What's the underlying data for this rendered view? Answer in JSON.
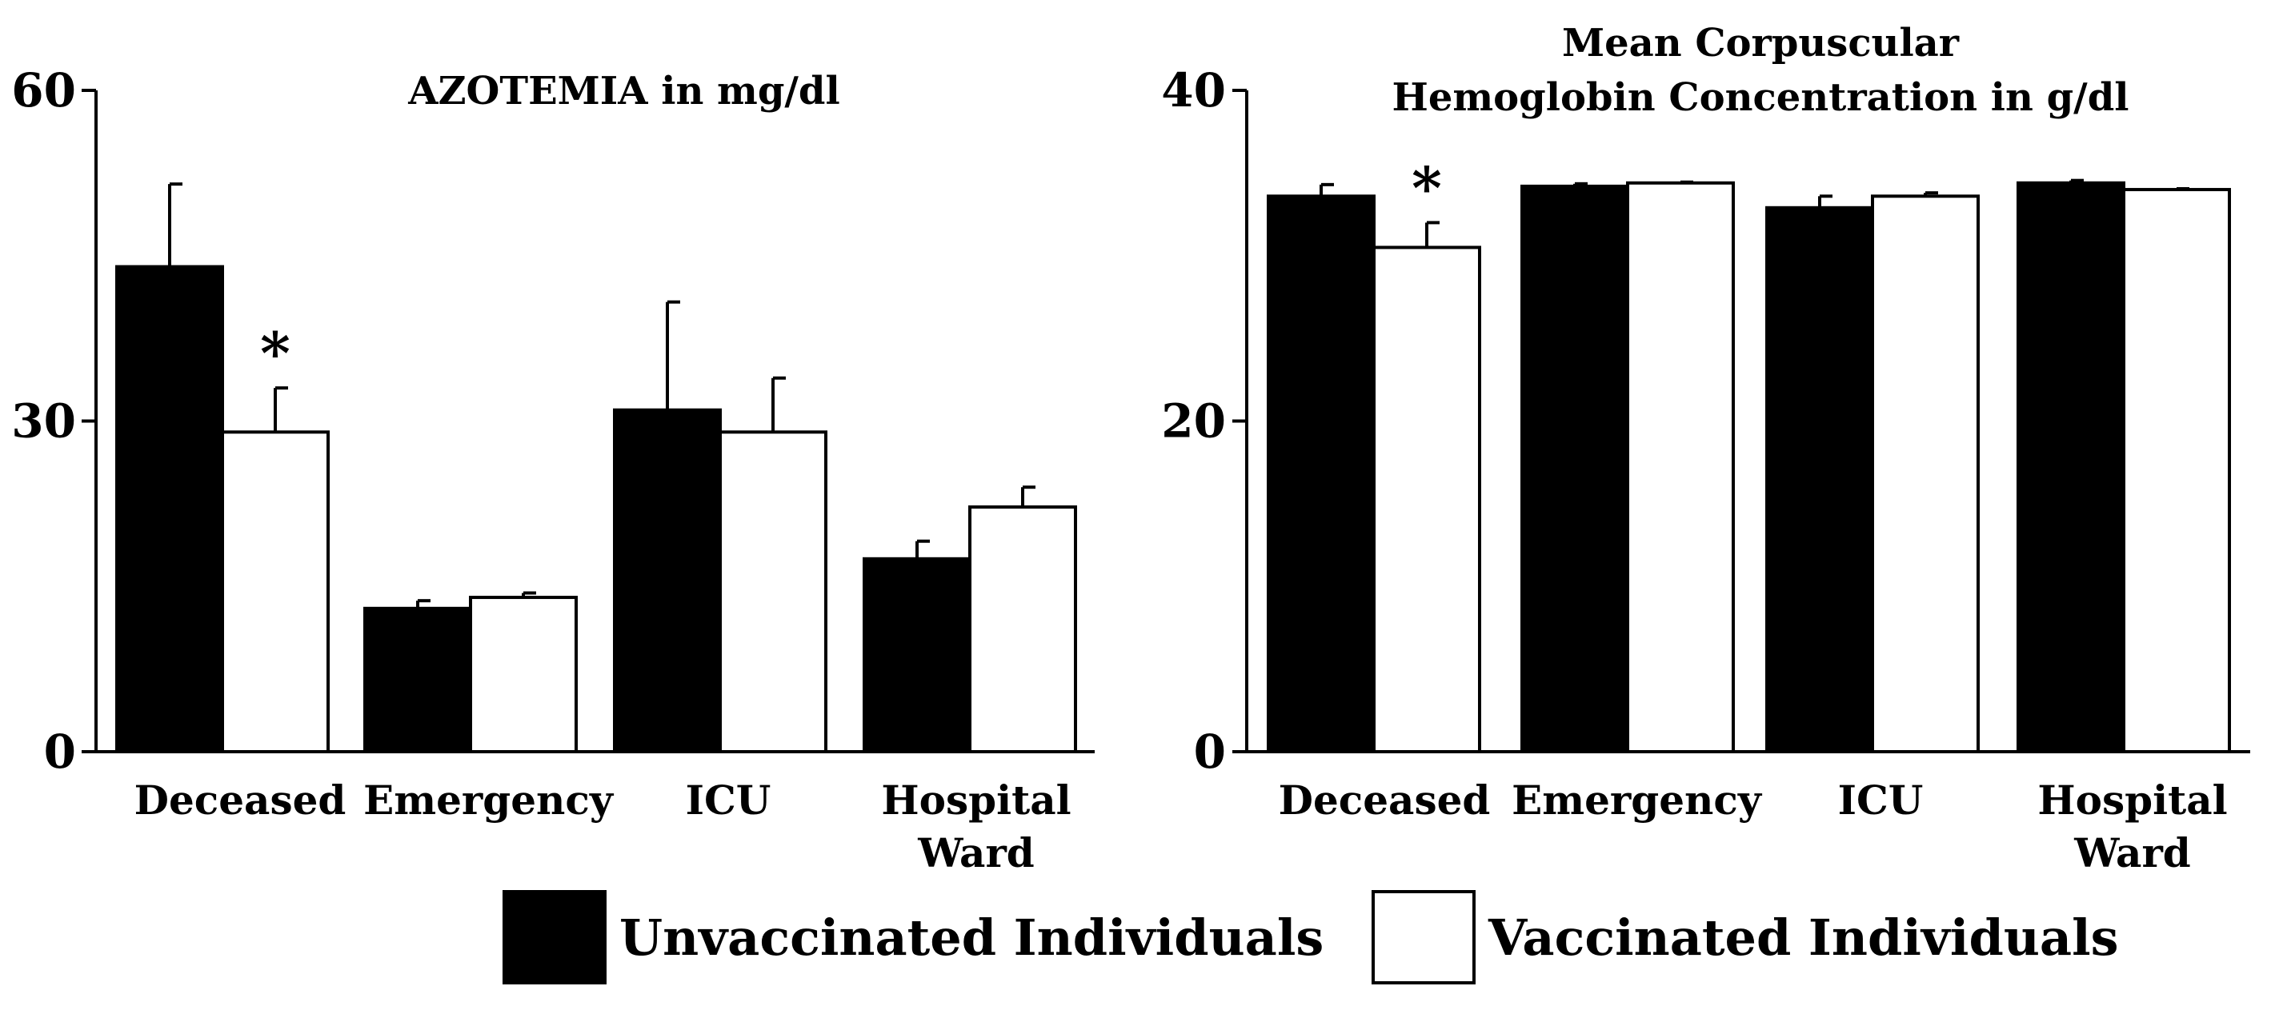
{
  "colors": {
    "unvaccinated": "#000000",
    "vaccinated": "#ffffff",
    "axis": "#000000"
  },
  "legend": {
    "unvaccinated_label": "Unvaccinated Individuals",
    "vaccinated_label": "Vaccinated Individuals"
  },
  "chart_data": [
    {
      "type": "bar",
      "title": "AZOTEMIA in mg/dl",
      "categories": [
        "Deceased",
        "Emergency",
        "ICU",
        "Hospital\nWard"
      ],
      "ylim": [
        0,
        60
      ],
      "yticks": [
        "0",
        "30",
        "60"
      ],
      "series": [
        {
          "name": "Unvaccinated Individuals",
          "values": [
            44,
            13,
            31,
            17.5
          ],
          "errors": [
            7.5,
            0.7,
            9.8,
            1.6
          ]
        },
        {
          "name": "Vaccinated Individuals",
          "values": [
            29,
            14,
            29,
            22.2
          ],
          "errors": [
            4,
            0.4,
            4.9,
            1.8
          ]
        }
      ],
      "annotations": [
        {
          "text": "*",
          "category": 0,
          "series": 1
        }
      ],
      "grid": false,
      "legend_position": "bottom"
    },
    {
      "type": "bar",
      "title": "Mean Corpuscular\nHemoglobin Concentration in g/dl",
      "categories": [
        "Deceased",
        "Emergency",
        "ICU",
        "Hospital\nWard"
      ],
      "ylim": [
        0,
        40
      ],
      "yticks": [
        "0",
        "20",
        "40"
      ],
      "series": [
        {
          "name": "Unvaccinated Individuals",
          "values": [
            33.6,
            34.2,
            32.9,
            34.4
          ],
          "errors": [
            0.7,
            0.15,
            0.7,
            0.15
          ]
        },
        {
          "name": "Vaccinated Individuals",
          "values": [
            30.5,
            34.4,
            33.6,
            34.0
          ],
          "errors": [
            1.5,
            0.05,
            0.2,
            0.05
          ]
        }
      ],
      "annotations": [
        {
          "text": "*",
          "category": 0,
          "series": 1
        }
      ],
      "grid": false,
      "legend_position": "bottom"
    }
  ]
}
